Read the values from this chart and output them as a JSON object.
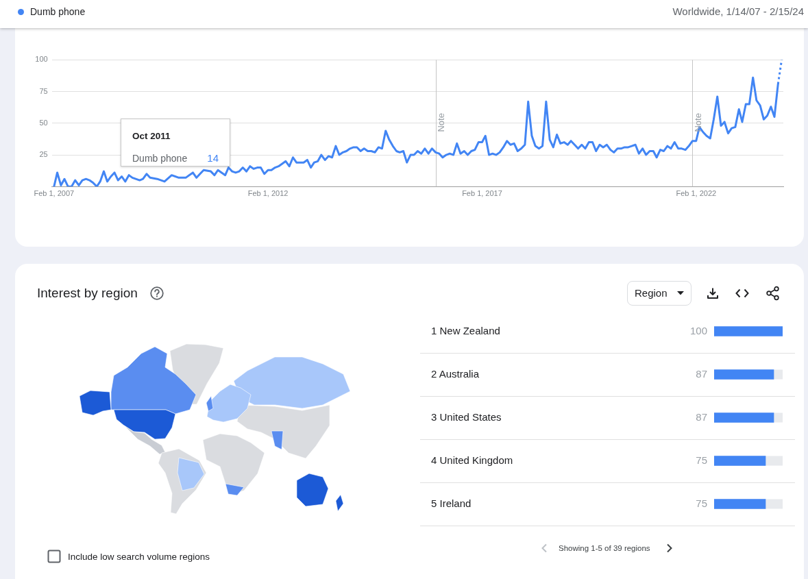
{
  "chart_data": [
    {
      "type": "line",
      "subtitle": "Worldwide, 1/14/07 - 2/15/24",
      "legend": "top left",
      "x": [
        "2007-02",
        "2007-03",
        "2007-04",
        "2007-05",
        "2007-06",
        "2007-07",
        "2007-08",
        "2007-09",
        "2007-10",
        "2007-11",
        "2007-12",
        "2008-01",
        "2008-02",
        "2008-03",
        "2008-04",
        "2008-05",
        "2008-06",
        "2008-07",
        "2008-08",
        "2008-09",
        "2008-10",
        "2008-11",
        "2008-12",
        "2009-02",
        "2009-03",
        "2009-04",
        "2009-05",
        "2009-07",
        "2009-09",
        "2009-11",
        "2010-01",
        "2010-02",
        "2010-03",
        "2010-05",
        "2010-06",
        "2010-07",
        "2010-08",
        "2010-10",
        "2010-11",
        "2010-12",
        "2011-01",
        "2011-02",
        "2011-03",
        "2011-04",
        "2011-05",
        "2011-06",
        "2011-07",
        "2011-08",
        "2011-09",
        "2011-10",
        "2011-11",
        "2011-12",
        "2012-01",
        "2012-02",
        "2012-03",
        "2012-04",
        "2012-05",
        "2012-06",
        "2012-07",
        "2012-08",
        "2012-09",
        "2012-10",
        "2012-12",
        "2013-01",
        "2013-02",
        "2013-03",
        "2013-04",
        "2013-05",
        "2013-06",
        "2013-07",
        "2013-08",
        "2013-09",
        "2013-10",
        "2013-11",
        "2013-12",
        "2014-01",
        "2014-02",
        "2014-03",
        "2014-04",
        "2014-05",
        "2014-06",
        "2014-07",
        "2014-08",
        "2014-09",
        "2014-10",
        "2014-11",
        "2014-12",
        "2015-01",
        "2015-02",
        "2015-03",
        "2015-04",
        "2015-05",
        "2015-06",
        "2015-07",
        "2015-08",
        "2015-09",
        "2015-10",
        "2015-11",
        "2015-12",
        "2016-01",
        "2016-02",
        "2016-03",
        "2016-04",
        "2016-05",
        "2016-06",
        "2016-07",
        "2016-08",
        "2016-09",
        "2016-10",
        "2016-11",
        "2016-12",
        "2017-01",
        "2017-02",
        "2017-03",
        "2017-04",
        "2017-05",
        "2017-06",
        "2017-07",
        "2017-08",
        "2017-09",
        "2017-10",
        "2017-11",
        "2017-12",
        "2018-01",
        "2018-02",
        "2018-03",
        "2018-04",
        "2018-05",
        "2018-06",
        "2018-07",
        "2018-08",
        "2018-09",
        "2018-10",
        "2018-11",
        "2018-12",
        "2019-01",
        "2019-02",
        "2019-03",
        "2019-04",
        "2019-05",
        "2019-06",
        "2019-07",
        "2019-08",
        "2019-09",
        "2019-10",
        "2019-11",
        "2019-12",
        "2020-01",
        "2020-02",
        "2020-03",
        "2020-04",
        "2020-05",
        "2020-06",
        "2020-07",
        "2020-08",
        "2020-09",
        "2020-10",
        "2020-11",
        "2020-12",
        "2021-01",
        "2021-02",
        "2021-03",
        "2021-04",
        "2021-05",
        "2021-06",
        "2021-07",
        "2021-08",
        "2021-09",
        "2021-10",
        "2021-11",
        "2021-12",
        "2022-01",
        "2022-02",
        "2022-03",
        "2022-04",
        "2022-05",
        "2022-06",
        "2022-07",
        "2022-08",
        "2022-09",
        "2022-10",
        "2022-11",
        "2022-12",
        "2023-01",
        "2023-02",
        "2023-03",
        "2023-04",
        "2023-05",
        "2023-06",
        "2023-07",
        "2023-08",
        "2023-09",
        "2023-10",
        "2023-11",
        "2023-12",
        "2024-01"
      ],
      "series": [
        {
          "name": "Dumb phone",
          "color": "#4285f4",
          "values": [
            0,
            11,
            1,
            6,
            0,
            0,
            5,
            1,
            5,
            6,
            5,
            3,
            0,
            4,
            12,
            4,
            8,
            11,
            5,
            8,
            4,
            9,
            7,
            5,
            6,
            10,
            7,
            6,
            4,
            9,
            7,
            7,
            7,
            11,
            7,
            10,
            13,
            12,
            9,
            13,
            11,
            9,
            15,
            12,
            11,
            12,
            15,
            12,
            16,
            14,
            15,
            15,
            10,
            13,
            13,
            15,
            16,
            18,
            20,
            16,
            23,
            19,
            19,
            21,
            15,
            19,
            20,
            25,
            21,
            24,
            23,
            32,
            25,
            27,
            28,
            30,
            31,
            31,
            28,
            30,
            28,
            28,
            27,
            31,
            30,
            44,
            37,
            32,
            28,
            27,
            28,
            19,
            25,
            25,
            28,
            26,
            30,
            26,
            30,
            27,
            26,
            23,
            25,
            26,
            25,
            34,
            26,
            28,
            25,
            28,
            29,
            35,
            35,
            40,
            25,
            26,
            25,
            27,
            31,
            36,
            33,
            34,
            28,
            30,
            33,
            67,
            40,
            32,
            30,
            32,
            67,
            37,
            31,
            41,
            34,
            35,
            33,
            36,
            33,
            30,
            33,
            30,
            35,
            35,
            28,
            33,
            31,
            33,
            29,
            27,
            30,
            30,
            31,
            31,
            32,
            33,
            26,
            30,
            25,
            28,
            28,
            23,
            29,
            28,
            32,
            30,
            35,
            30,
            30,
            29,
            32,
            36,
            36,
            47,
            43,
            40,
            38,
            53,
            71,
            48,
            51,
            42,
            46,
            47,
            61,
            51,
            65,
            65,
            86,
            68,
            64,
            53,
            56,
            63,
            55,
            81
          ]
        },
        {
          "color": "#4285f4",
          "x": [
            "2024-01",
            "2024-02"
          ],
          "values": [
            81,
            100
          ],
          "line_style": "dotted"
        }
      ],
      "xlim": [
        "2007-01-14",
        "2024-02-15"
      ],
      "xticks": [
        {
          "value": "2007-02-01",
          "label": "Feb 1, 2007"
        },
        {
          "value": "2012-02-01",
          "label": "Feb 1, 2012"
        },
        {
          "value": "2017-02-01",
          "label": "Feb 1, 2017"
        },
        {
          "value": "2022-02-01",
          "label": "Feb 1, 2022"
        }
      ],
      "ylim": [
        0,
        100
      ],
      "yticks": [
        25,
        50,
        75,
        100
      ],
      "grid": "y",
      "ref_lines": [
        {
          "axis": "x",
          "value": "2016-01-01",
          "label": "Note"
        },
        {
          "axis": "x",
          "value": "2022-01-01",
          "label": "Note"
        }
      ],
      "annotations": [
        "Oct 2011",
        "14"
      ]
    },
    {
      "type": "bar",
      "orientation": "horizontal",
      "categories": [
        "1 New Zealand",
        "2 Australia",
        "3 United States",
        "4 United Kingdom",
        "5 Ireland"
      ],
      "values": [
        100,
        87,
        87,
        75,
        75
      ],
      "color": "#4285f4",
      "xlim": [
        0,
        100
      ],
      "data_labels": true,
      "grid": "y",
      "tick_labels": "y",
      "annotations": [
        "Interest by region",
        "Region",
        "Showing 1-5 of 39 regions",
        "Include low search volume regions"
      ]
    }
  ]
}
